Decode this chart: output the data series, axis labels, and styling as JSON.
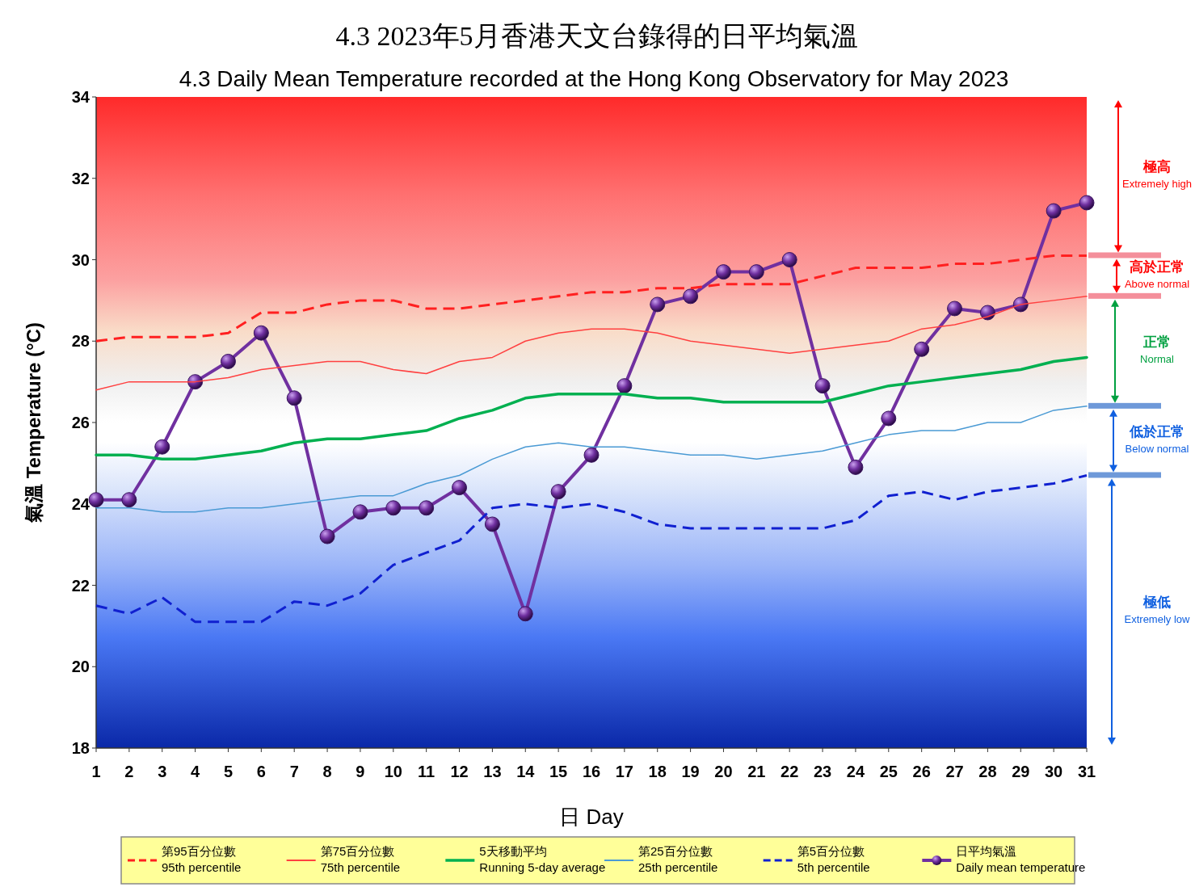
{
  "chart_data": {
    "type": "line",
    "title": "4.3   2023年5月香港天文台錄得的日平均氣溫",
    "subtitle": "4.3    Daily Mean Temperature recorded at the Hong Kong Observatory for May 2023",
    "xlabel": "日 Day",
    "ylabel": "氣溫   Temperature (°C)",
    "x": [
      1,
      2,
      3,
      4,
      5,
      6,
      7,
      8,
      9,
      10,
      11,
      12,
      13,
      14,
      15,
      16,
      17,
      18,
      19,
      20,
      21,
      22,
      23,
      24,
      25,
      26,
      27,
      28,
      29,
      30,
      31
    ],
    "xlim": [
      1,
      31
    ],
    "xticks": [
      1,
      2,
      3,
      4,
      5,
      6,
      7,
      8,
      9,
      10,
      11,
      12,
      13,
      14,
      15,
      16,
      17,
      18,
      19,
      20,
      21,
      22,
      23,
      24,
      25,
      26,
      27,
      28,
      29,
      30,
      31
    ],
    "ylim": [
      18,
      34
    ],
    "yticks": [
      18,
      20,
      22,
      24,
      26,
      28,
      30,
      32,
      34
    ],
    "grid": false,
    "legend": "bottom",
    "series": [
      {
        "name": "第95百分位數\n95th percentile",
        "color": "#ff2020",
        "line_style": "dashed",
        "marker": "none",
        "values": [
          28.0,
          28.1,
          28.1,
          28.1,
          28.2,
          28.7,
          28.7,
          28.9,
          29.0,
          29.0,
          28.8,
          28.8,
          28.9,
          29.0,
          29.1,
          29.2,
          29.2,
          29.3,
          29.3,
          29.4,
          29.4,
          29.4,
          29.6,
          29.8,
          29.8,
          29.8,
          29.9,
          29.9,
          30.0,
          30.1,
          30.1
        ]
      },
      {
        "name": "第75百分位數\n75th percentile",
        "color": "#ff4040",
        "line_style": "solid",
        "marker": "none",
        "values": [
          26.8,
          27.0,
          27.0,
          27.0,
          27.1,
          27.3,
          27.4,
          27.5,
          27.5,
          27.3,
          27.2,
          27.5,
          27.6,
          28.0,
          28.2,
          28.3,
          28.3,
          28.2,
          28.0,
          27.9,
          27.8,
          27.7,
          27.8,
          27.9,
          28.0,
          28.3,
          28.4,
          28.6,
          28.9,
          29.0,
          29.1
        ]
      },
      {
        "name": "5天移動平均\nRunning 5-day average",
        "color": "#00b050",
        "line_style": "solid",
        "marker": "none",
        "values": [
          25.2,
          25.2,
          25.1,
          25.1,
          25.2,
          25.3,
          25.5,
          25.6,
          25.6,
          25.7,
          25.8,
          26.1,
          26.3,
          26.6,
          26.7,
          26.7,
          26.7,
          26.6,
          26.6,
          26.5,
          26.5,
          26.5,
          26.5,
          26.7,
          26.9,
          27.0,
          27.1,
          27.2,
          27.3,
          27.5,
          27.6
        ]
      },
      {
        "name": "第25百分位數\n25th percentile",
        "color": "#4a9ad4",
        "line_style": "solid",
        "marker": "none",
        "values": [
          23.9,
          23.9,
          23.8,
          23.8,
          23.9,
          23.9,
          24.0,
          24.1,
          24.2,
          24.2,
          24.5,
          24.7,
          25.1,
          25.4,
          25.5,
          25.4,
          25.4,
          25.3,
          25.2,
          25.2,
          25.1,
          25.2,
          25.3,
          25.5,
          25.7,
          25.8,
          25.8,
          26.0,
          26.0,
          26.3,
          26.4
        ]
      },
      {
        "name": "第5百分位數\n5th percentile",
        "color": "#1020d0",
        "line_style": "dashed",
        "marker": "none",
        "values": [
          21.5,
          21.3,
          21.7,
          21.1,
          21.1,
          21.1,
          21.6,
          21.5,
          21.8,
          22.5,
          22.8,
          23.1,
          23.9,
          24.0,
          23.9,
          24.0,
          23.8,
          23.5,
          23.4,
          23.4,
          23.4,
          23.4,
          23.4,
          23.6,
          24.2,
          24.3,
          24.1,
          24.3,
          24.4,
          24.5,
          24.7
        ]
      },
      {
        "name": "日平均氣溫\nDaily mean temperature",
        "color": "#7030a0",
        "line_style": "solid",
        "marker": "circle",
        "values": [
          24.1,
          24.1,
          25.4,
          27.0,
          27.5,
          28.2,
          26.6,
          23.2,
          23.8,
          23.9,
          23.9,
          24.4,
          23.5,
          21.3,
          24.3,
          25.2,
          26.9,
          28.9,
          29.1,
          29.7,
          29.7,
          30.0,
          26.9,
          24.9,
          26.1,
          27.8,
          28.8,
          28.7,
          28.9,
          31.2,
          31.4
        ]
      }
    ],
    "annotations": [
      "極高\nExtremely high",
      "高於正常\nAbove normal",
      "正常\nNormal",
      "低於正常\nBelow normal",
      "極低\nExtremely low"
    ]
  }
}
